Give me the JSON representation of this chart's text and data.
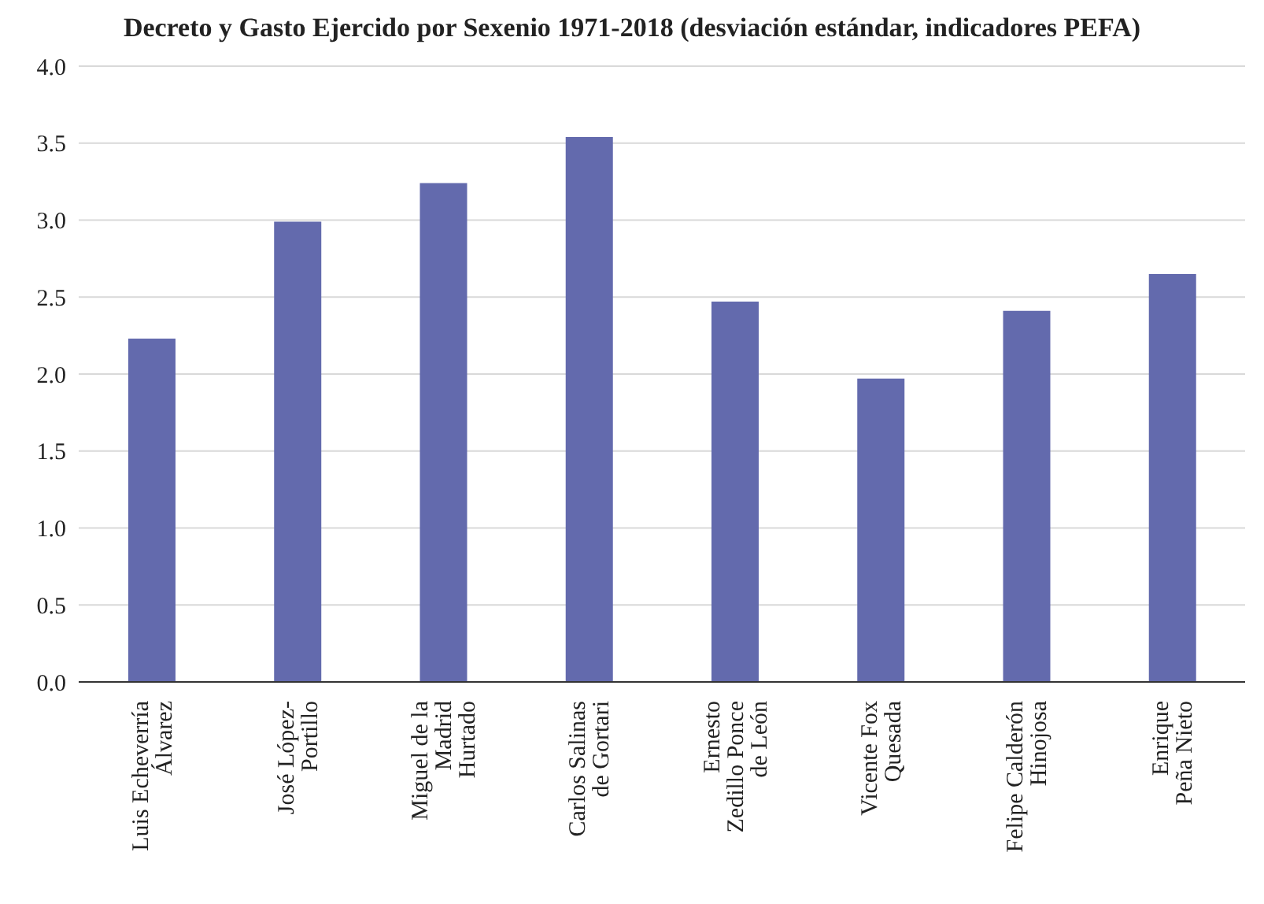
{
  "chart_data": {
    "type": "bar",
    "title": "Decreto y Gasto Ejercido por Sexenio 1971-2018 (desviación estándar, indicadores PEFA)",
    "categories": [
      "Luis Echeverría\nÁlvarez",
      "José López-\nPortillo",
      "Miguel de la\nMadrid\nHurtado",
      "Carlos Salinas\nde Gortari",
      "Ernesto\nZedillo Ponce\nde León",
      "Vicente Fox\nQuesada",
      "Felipe Calderón\nHinojosa",
      "Enrique\nPeña Nieto"
    ],
    "values": [
      2.23,
      2.99,
      3.24,
      3.54,
      2.47,
      1.97,
      2.41,
      2.65
    ],
    "color": "#636aad",
    "ylim": [
      0,
      4
    ],
    "yticks": [
      {
        "value": 0,
        "label": "0.0"
      },
      {
        "value": 0.5,
        "label": "0.5"
      },
      {
        "value": 1,
        "label": "1.0"
      },
      {
        "value": 1.5,
        "label": "1.5"
      },
      {
        "value": 2,
        "label": "2.0"
      },
      {
        "value": 2.5,
        "label": "2.5"
      },
      {
        "value": 3,
        "label": "3.0"
      },
      {
        "value": 3.5,
        "label": "3.5"
      },
      {
        "value": 4,
        "label": "4.0"
      }
    ],
    "grid": "y"
  }
}
